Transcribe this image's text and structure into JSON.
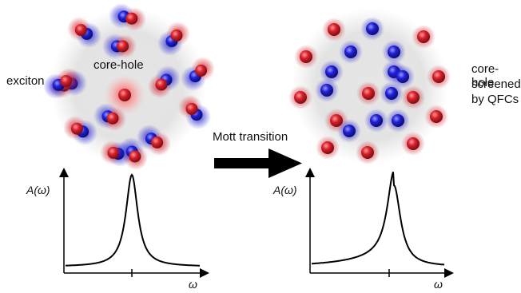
{
  "left_panel": {
    "label_exciton": "exciton",
    "label_core_hole": "core-hole",
    "spectrum_ylabel": "A(ω)",
    "spectrum_xlabel": "ω"
  },
  "transition": {
    "label": "Mott transition"
  },
  "right_panel": {
    "label_screened_line1": "core-hole",
    "label_screened_line2": "screened",
    "label_screened_line3": "by QFCs",
    "spectrum_ylabel": "A(ω)",
    "spectrum_xlabel": "ω"
  },
  "colors": {
    "electron": "#1f1fd6",
    "hole": "#d41f2a",
    "core_hole_glow": "#ff6b6b",
    "cloud": "#dcdcdc",
    "line": "#000000"
  }
}
